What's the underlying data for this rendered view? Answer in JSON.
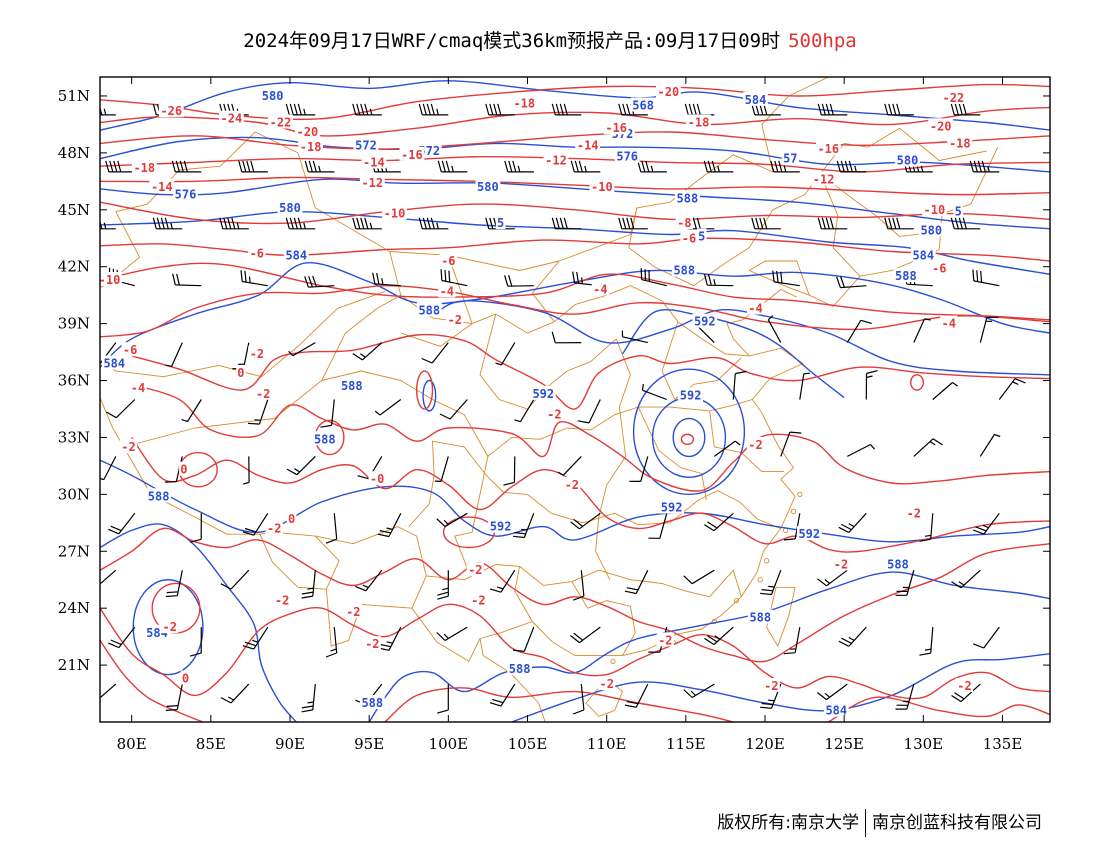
{
  "title": {
    "main": "2024年09月17日WRF/cmaq模式36km预报产品:09月17日09时",
    "level": "500hpa"
  },
  "footer": {
    "copyright": "版权所有:南京大学",
    "company": "南京创蓝科技有限公司"
  },
  "colors": {
    "height_contour": "#2a4fd6",
    "temperature_contour": "#e23a3a",
    "border": "#d98b2b",
    "barb": "#000000"
  },
  "axes": {
    "lon_ticks": [
      "80E",
      "85E",
      "90E",
      "95E",
      "100E",
      "105E",
      "110E",
      "115E",
      "120E",
      "125E",
      "130E",
      "135E"
    ],
    "lat_ticks": [
      "51N",
      "48N",
      "45N",
      "42N",
      "39N",
      "36N",
      "33N",
      "30N",
      "27N",
      "24N",
      "21N"
    ],
    "lon_values": [
      80,
      85,
      90,
      95,
      100,
      105,
      110,
      115,
      120,
      125,
      130,
      135
    ],
    "lat_values": [
      51,
      48,
      45,
      42,
      39,
      36,
      33,
      30,
      27,
      24,
      21
    ],
    "lon_range": [
      78,
      138
    ],
    "lat_range": [
      18,
      52
    ]
  },
  "height_labels": [
    {
      "text": "580",
      "lon": 88.9,
      "lat": 51.0
    },
    {
      "text": "568",
      "lon": 112.3,
      "lat": 50.5
    },
    {
      "text": "584",
      "lon": 119.4,
      "lat": 50.8
    },
    {
      "text": "572",
      "lon": 94.8,
      "lat": 48.4
    },
    {
      "text": "572",
      "lon": 98.8,
      "lat": 48.1
    },
    {
      "text": "572",
      "lon": 111.0,
      "lat": 49.0
    },
    {
      "text": "576",
      "lon": 111.3,
      "lat": 47.8
    },
    {
      "text": "57",
      "lon": 121.6,
      "lat": 47.7
    },
    {
      "text": "580",
      "lon": 129.0,
      "lat": 47.6
    },
    {
      "text": "576",
      "lon": 83.4,
      "lat": 45.8
    },
    {
      "text": "580",
      "lon": 102.5,
      "lat": 46.2
    },
    {
      "text": "580",
      "lon": 90.0,
      "lat": 45.1
    },
    {
      "text": "588",
      "lon": 115.1,
      "lat": 45.6
    },
    {
      "text": "5",
      "lon": 103.3,
      "lat": 44.3
    },
    {
      "text": "580",
      "lon": 130.5,
      "lat": 43.9
    },
    {
      "text": "5",
      "lon": 132.2,
      "lat": 44.9
    },
    {
      "text": "584",
      "lon": 90.4,
      "lat": 42.6
    },
    {
      "text": "5",
      "lon": 116.0,
      "lat": 43.6
    },
    {
      "text": "588",
      "lon": 114.9,
      "lat": 41.8
    },
    {
      "text": "584",
      "lon": 130.0,
      "lat": 42.6
    },
    {
      "text": "588",
      "lon": 128.9,
      "lat": 41.5
    },
    {
      "text": "588",
      "lon": 98.8,
      "lat": 39.7
    },
    {
      "text": "592",
      "lon": 116.2,
      "lat": 39.1
    },
    {
      "text": "584",
      "lon": 78.9,
      "lat": 36.9
    },
    {
      "text": "588",
      "lon": 93.9,
      "lat": 35.7
    },
    {
      "text": "592",
      "lon": 106.0,
      "lat": 35.3
    },
    {
      "text": "592",
      "lon": 115.3,
      "lat": 35.2
    },
    {
      "text": "588",
      "lon": 92.2,
      "lat": 32.9
    },
    {
      "text": "588",
      "lon": 81.7,
      "lat": 29.9
    },
    {
      "text": "592",
      "lon": 114.1,
      "lat": 29.3
    },
    {
      "text": "592",
      "lon": 103.3,
      "lat": 28.3
    },
    {
      "text": "592",
      "lon": 122.8,
      "lat": 27.9
    },
    {
      "text": "588",
      "lon": 128.4,
      "lat": 26.3
    },
    {
      "text": "588",
      "lon": 119.7,
      "lat": 23.5
    },
    {
      "text": "584",
      "lon": 81.6,
      "lat": 22.7
    },
    {
      "text": "588",
      "lon": 104.5,
      "lat": 20.8
    },
    {
      "text": "588",
      "lon": 95.2,
      "lat": 19.0
    },
    {
      "text": "584",
      "lon": 124.5,
      "lat": 18.6
    }
  ],
  "temperature_labels": [
    {
      "text": "-26",
      "lon": 82.5,
      "lat": 50.2
    },
    {
      "text": "-24",
      "lon": 86.3,
      "lat": 49.8
    },
    {
      "text": "-22",
      "lon": 89.4,
      "lat": 49.6
    },
    {
      "text": "-20",
      "lon": 91.1,
      "lat": 49.1
    },
    {
      "text": "-18",
      "lon": 91.3,
      "lat": 48.3
    },
    {
      "text": "-14",
      "lon": 95.3,
      "lat": 47.5
    },
    {
      "text": "-16",
      "lon": 97.7,
      "lat": 47.9
    },
    {
      "text": "-18",
      "lon": 104.8,
      "lat": 50.6
    },
    {
      "text": "-20",
      "lon": 113.9,
      "lat": 51.2
    },
    {
      "text": "-18",
      "lon": 115.8,
      "lat": 49.6
    },
    {
      "text": "-16",
      "lon": 110.6,
      "lat": 49.3
    },
    {
      "text": "-14",
      "lon": 108.8,
      "lat": 48.4
    },
    {
      "text": "-12",
      "lon": 106.8,
      "lat": 47.6
    },
    {
      "text": "-16",
      "lon": 124.0,
      "lat": 48.2
    },
    {
      "text": "-20",
      "lon": 131.1,
      "lat": 49.4
    },
    {
      "text": "-22",
      "lon": 131.9,
      "lat": 50.9
    },
    {
      "text": "-18",
      "lon": 132.3,
      "lat": 48.5
    },
    {
      "text": "-18",
      "lon": 80.8,
      "lat": 47.2
    },
    {
      "text": "-14",
      "lon": 81.9,
      "lat": 46.2
    },
    {
      "text": "-12",
      "lon": 95.2,
      "lat": 46.4
    },
    {
      "text": "-10",
      "lon": 109.7,
      "lat": 46.2
    },
    {
      "text": "-12",
      "lon": 123.7,
      "lat": 46.6
    },
    {
      "text": "-10",
      "lon": 96.6,
      "lat": 44.8
    },
    {
      "text": "-10",
      "lon": 130.7,
      "lat": 45.0
    },
    {
      "text": "-8",
      "lon": 114.9,
      "lat": 44.3
    },
    {
      "text": "-6",
      "lon": 115.2,
      "lat": 43.5
    },
    {
      "text": "-6",
      "lon": 87.9,
      "lat": 42.7
    },
    {
      "text": "-6",
      "lon": 100.0,
      "lat": 42.3
    },
    {
      "text": "-6",
      "lon": 131.0,
      "lat": 41.9
    },
    {
      "text": "-10",
      "lon": 78.6,
      "lat": 41.3
    },
    {
      "text": "-4",
      "lon": 99.9,
      "lat": 40.7
    },
    {
      "text": "-4",
      "lon": 109.6,
      "lat": 40.8
    },
    {
      "text": "-4",
      "lon": 119.4,
      "lat": 39.8
    },
    {
      "text": "-4",
      "lon": 131.6,
      "lat": 39.0
    },
    {
      "text": "-2",
      "lon": 100.4,
      "lat": 39.2
    },
    {
      "text": "-6",
      "lon": 79.9,
      "lat": 37.6
    },
    {
      "text": "-2",
      "lon": 87.9,
      "lat": 37.4
    },
    {
      "text": "0",
      "lon": 86.9,
      "lat": 36.4
    },
    {
      "text": "-2",
      "lon": 88.3,
      "lat": 35.3
    },
    {
      "text": "-4",
      "lon": 80.4,
      "lat": 35.6
    },
    {
      "text": "-2",
      "lon": 106.7,
      "lat": 34.2
    },
    {
      "text": "-2",
      "lon": 79.8,
      "lat": 32.5
    },
    {
      "text": "0",
      "lon": 83.3,
      "lat": 31.3
    },
    {
      "text": "-0",
      "lon": 95.5,
      "lat": 30.8
    },
    {
      "text": "-2",
      "lon": 119.4,
      "lat": 32.6
    },
    {
      "text": "-2",
      "lon": 107.8,
      "lat": 30.5
    },
    {
      "text": "-2",
      "lon": 89.0,
      "lat": 28.2
    },
    {
      "text": "0",
      "lon": 90.1,
      "lat": 28.7
    },
    {
      "text": "-2",
      "lon": 101.7,
      "lat": 26.0
    },
    {
      "text": "-2",
      "lon": 129.4,
      "lat": 29.0
    },
    {
      "text": "-2",
      "lon": 89.5,
      "lat": 24.4
    },
    {
      "text": "-2",
      "lon": 82.4,
      "lat": 23.0
    },
    {
      "text": "-2",
      "lon": 94.0,
      "lat": 23.8
    },
    {
      "text": "-2",
      "lon": 101.9,
      "lat": 24.4
    },
    {
      "text": "-2",
      "lon": 113.7,
      "lat": 22.3
    },
    {
      "text": "-2",
      "lon": 95.2,
      "lat": 22.1
    },
    {
      "text": "-2",
      "lon": 110.0,
      "lat": 20.0
    },
    {
      "text": "-2",
      "lon": 124.8,
      "lat": 26.3
    },
    {
      "text": "-2",
      "lon": 120.4,
      "lat": 19.9
    },
    {
      "text": "-2",
      "lon": 132.6,
      "lat": 19.9
    },
    {
      "text": "0",
      "lon": 83.4,
      "lat": 20.3
    }
  ]
}
